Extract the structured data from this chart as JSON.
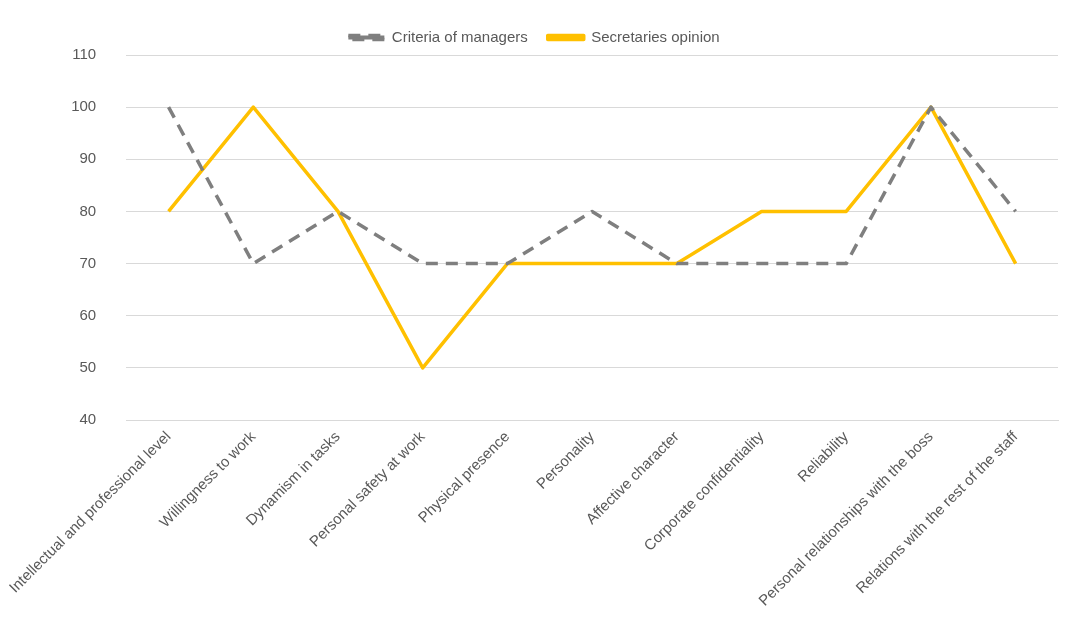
{
  "chart_data": {
    "type": "line",
    "categories": [
      "Intellectual and professional level",
      "Willingness to work",
      "Dynamism in tasks",
      "Personal safety at work",
      "Physical presence",
      "Personality",
      "Affective character",
      "Corporate confidentiality",
      "Reliability",
      "Personal relationships with the boss",
      "Relations with the rest of the staff"
    ],
    "series": [
      {
        "name": "Criteria of managers",
        "color": "#7f7f7f",
        "line_style": "dashed",
        "values": [
          100,
          70,
          80,
          70,
          70,
          80,
          70,
          70,
          70,
          100,
          80
        ]
      },
      {
        "name": "Secretaries opinion",
        "color": "#ffc000",
        "line_style": "solid",
        "values": [
          80,
          100,
          80,
          50,
          70,
          70,
          70,
          80,
          80,
          100,
          70
        ]
      }
    ],
    "ylim": [
      40,
      110
    ],
    "yticks": [
      40,
      50,
      60,
      70,
      80,
      90,
      100,
      110
    ],
    "grid": "y",
    "legend": "top",
    "marker": "none"
  }
}
